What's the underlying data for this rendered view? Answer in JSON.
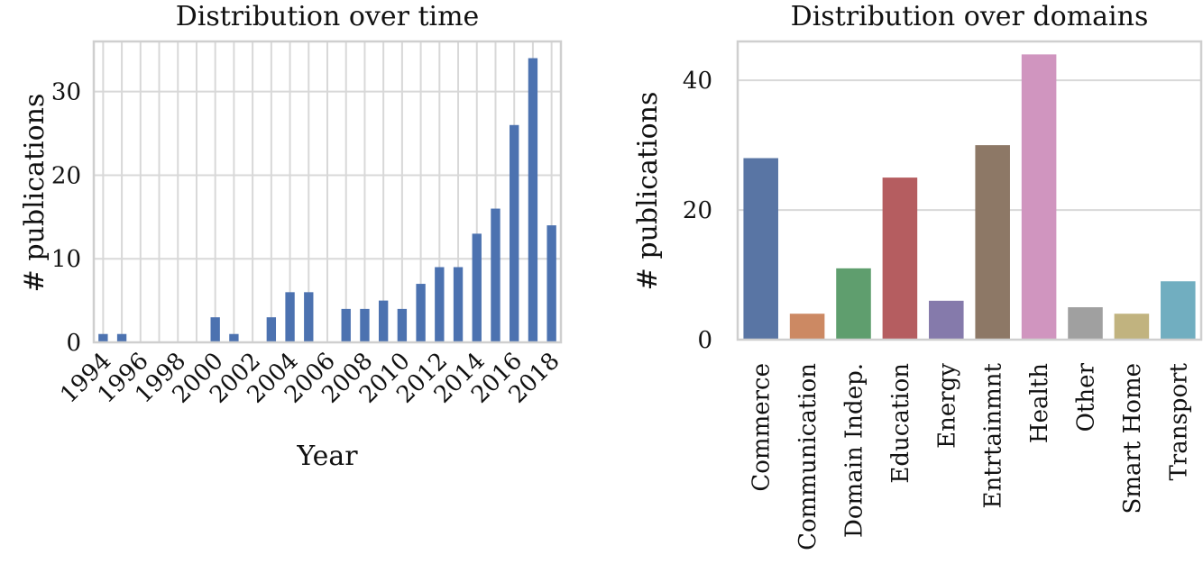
{
  "chart_data": [
    {
      "type": "bar",
      "title": "Distribution over time",
      "xlabel": "Year",
      "ylabel": "# publications",
      "categories": [
        "1994",
        "1995",
        "1996",
        "1997",
        "1998",
        "1999",
        "2000",
        "2001",
        "2002",
        "2003",
        "2004",
        "2005",
        "2006",
        "2007",
        "2008",
        "2009",
        "2010",
        "2011",
        "2012",
        "2013",
        "2014",
        "2015",
        "2016",
        "2017",
        "2018"
      ],
      "values": [
        1,
        1,
        0,
        0,
        0,
        0,
        3,
        1,
        0,
        3,
        6,
        6,
        0,
        4,
        4,
        5,
        4,
        7,
        9,
        9,
        13,
        16,
        26,
        34,
        14
      ],
      "tick_labels": [
        "1994",
        "1996",
        "1998",
        "2000",
        "2002",
        "2004",
        "2006",
        "2008",
        "2010",
        "2012",
        "2014",
        "2016",
        "2018"
      ],
      "yticks": [
        0,
        10,
        20,
        30
      ],
      "ylim": [
        0,
        36
      ],
      "grid": true,
      "colors": {
        "bar": "#4c72b0"
      }
    },
    {
      "type": "bar",
      "title": "Distribution over domains",
      "xlabel": "",
      "ylabel": "# publications",
      "categories": [
        "Commerce",
        "Communication",
        "Domain Indep.",
        "Education",
        "Energy",
        "Entrtainmnt",
        "Health",
        "Other",
        "Smart Home",
        "Transport"
      ],
      "values": [
        28,
        4,
        11,
        25,
        6,
        30,
        44,
        5,
        4,
        9
      ],
      "yticks": [
        0,
        20,
        40
      ],
      "ylim": [
        0,
        46
      ],
      "grid": true,
      "colors": {
        "bars": [
          "#5975a4",
          "#cc8963",
          "#5f9e6e",
          "#b55d60",
          "#857aab",
          "#8d7866",
          "#d095bf",
          "#a0a0a0",
          "#c1b37f",
          "#71aec0"
        ]
      }
    }
  ]
}
